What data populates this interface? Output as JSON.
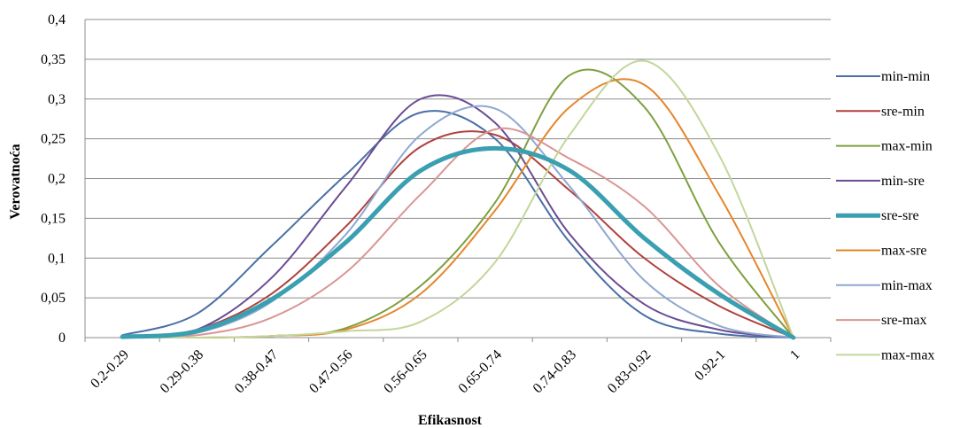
{
  "chart_data": {
    "type": "line",
    "title": "",
    "xlabel": "Efikasnost",
    "ylabel": "Verovatnoća",
    "categories": [
      "0.2-0.29",
      "0.29-0.38",
      "0.38-0.47",
      "0.47-0.56",
      "0.56-0.65",
      "0.65-0.74",
      "0.74-0.83",
      "0.83-0.92",
      "0.92-1",
      "1"
    ],
    "y_ticks": [
      "0",
      "0,05",
      "0,1",
      "0,15",
      "0,2",
      "0,25",
      "0,3",
      "0,35",
      "0,4"
    ],
    "ylim": [
      0,
      0.4
    ],
    "grid": "horizontal",
    "legend_position": "right",
    "series": [
      {
        "name": "min-min",
        "color": "#4a6fa5",
        "width": 2,
        "values": [
          0.003,
          0.03,
          0.115,
          0.205,
          0.283,
          0.25,
          0.12,
          0.028,
          0.005,
          0.0
        ]
      },
      {
        "name": "sre-min",
        "color": "#b0413e",
        "width": 2,
        "values": [
          0.001,
          0.01,
          0.055,
          0.14,
          0.24,
          0.255,
          0.185,
          0.1,
          0.04,
          0.0
        ]
      },
      {
        "name": "max-min",
        "color": "#7f9f3f",
        "width": 2,
        "values": [
          0.0,
          0.0,
          0.002,
          0.012,
          0.065,
          0.17,
          0.33,
          0.29,
          0.12,
          0.0
        ]
      },
      {
        "name": "min-sre",
        "color": "#6a4c93",
        "width": 2,
        "values": [
          0.001,
          0.01,
          0.075,
          0.19,
          0.3,
          0.27,
          0.13,
          0.042,
          0.01,
          0.0
        ]
      },
      {
        "name": "sre-sre",
        "color": "#3a9fb0",
        "width": 5,
        "values": [
          0.001,
          0.008,
          0.048,
          0.12,
          0.21,
          0.238,
          0.21,
          0.125,
          0.055,
          0.0
        ]
      },
      {
        "name": "max-sre",
        "color": "#e6862a",
        "width": 2,
        "values": [
          0.0,
          0.0,
          0.002,
          0.01,
          0.055,
          0.16,
          0.29,
          0.318,
          0.18,
          0.0
        ]
      },
      {
        "name": "min-max",
        "color": "#8fa8d0",
        "width": 2,
        "values": [
          0.001,
          0.006,
          0.045,
          0.13,
          0.255,
          0.288,
          0.19,
          0.072,
          0.015,
          0.0
        ]
      },
      {
        "name": "sre-max",
        "color": "#d99694",
        "width": 2,
        "values": [
          0.0,
          0.003,
          0.025,
          0.082,
          0.18,
          0.262,
          0.225,
          0.165,
          0.065,
          0.0
        ]
      },
      {
        "name": "max-max",
        "color": "#c3d69b",
        "width": 2,
        "values": [
          0.0,
          0.0,
          0.002,
          0.008,
          0.02,
          0.095,
          0.255,
          0.348,
          0.23,
          0.0
        ]
      }
    ]
  }
}
